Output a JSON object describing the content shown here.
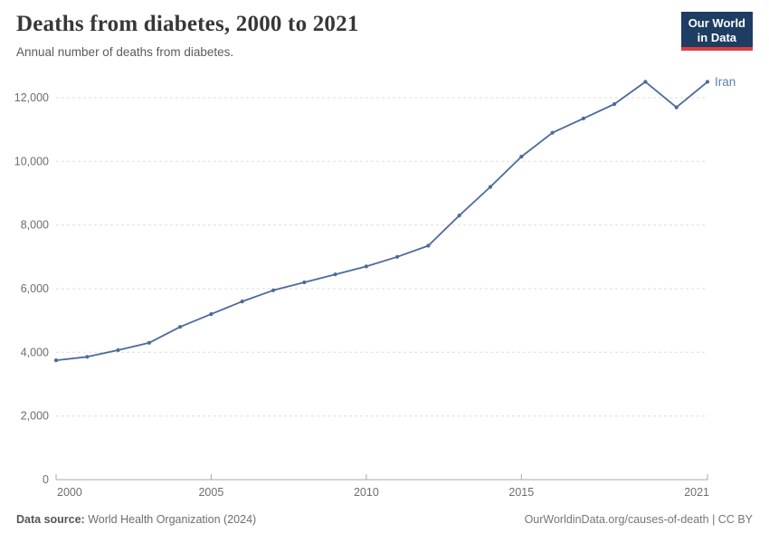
{
  "header": {
    "title": "Deaths from diabetes, 2000 to 2021",
    "subtitle": "Annual number of deaths from diabetes.",
    "logo_line1": "Our World",
    "logo_line2": "in Data",
    "logo_bg_color": "#1d3d63",
    "logo_accent_color": "#dc3e3e"
  },
  "chart_data": {
    "type": "line",
    "title": "Deaths from diabetes, 2000 to 2021",
    "subtitle": "Annual number of deaths from diabetes.",
    "xlabel": "",
    "ylabel": "",
    "x_range": [
      2000,
      2021
    ],
    "ylim": [
      0,
      12800
    ],
    "grid": "horizontal-dashed",
    "legend_position": "end-of-line-label",
    "x": [
      2000,
      2001,
      2002,
      2003,
      2004,
      2005,
      2006,
      2007,
      2008,
      2009,
      2010,
      2011,
      2012,
      2013,
      2014,
      2015,
      2016,
      2017,
      2018,
      2019,
      2020,
      2021
    ],
    "series": [
      {
        "name": "Iran",
        "color": "#4c6a9c",
        "label_color": "#5b7cb6",
        "values": [
          3750,
          3860,
          4070,
          4300,
          4800,
          5200,
          5600,
          5950,
          6200,
          6450,
          6700,
          7000,
          7350,
          8300,
          9200,
          10150,
          10900,
          11350,
          11800,
          12500,
          11700,
          12500
        ]
      }
    ],
    "x_ticks": [
      2000,
      2005,
      2010,
      2015,
      2021
    ],
    "x_tick_labels": [
      "2000",
      "2005",
      "2010",
      "2015",
      "2021"
    ],
    "y_ticks": [
      0,
      2000,
      4000,
      6000,
      8000,
      10000,
      12000
    ],
    "y_tick_labels": [
      "0",
      "2,000",
      "4,000",
      "6,000",
      "8,000",
      "10,000",
      "12,000"
    ],
    "gridline_color": "#dddddd",
    "axis_line_color": "#a8a8a8",
    "tick_label_color": "#6e6e6e"
  },
  "footer": {
    "source_label": "Data source:",
    "source_value": "World Health Organization (2024)",
    "link": "OurWorldinData.org/causes-of-death | CC BY"
  }
}
